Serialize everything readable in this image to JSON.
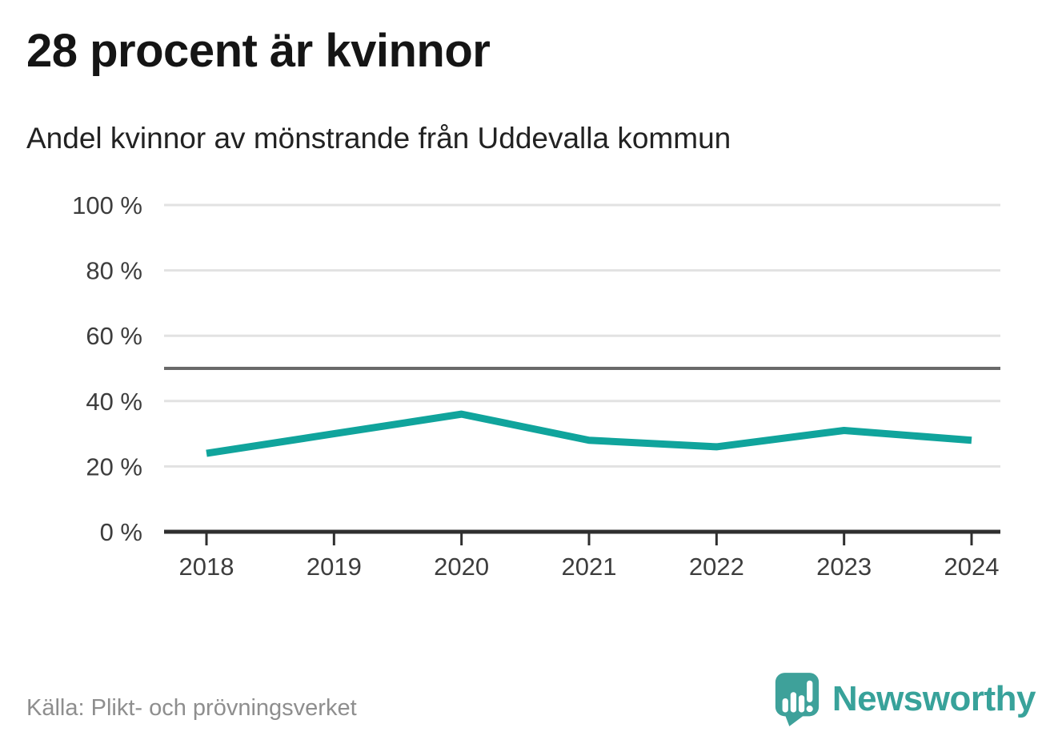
{
  "header": {
    "title": "28 procent är kvinnor",
    "subtitle": "Andel kvinnor av mönstrande från Uddevalla kommun"
  },
  "chart_data": {
    "type": "line",
    "title": "Andel kvinnor av mönstrande från Uddevalla kommun",
    "categories": [
      "2018",
      "2019",
      "2020",
      "2021",
      "2022",
      "2023",
      "2024"
    ],
    "series": [
      {
        "name": "Andel kvinnor",
        "values": [
          24,
          30,
          36,
          28,
          26,
          31,
          28
        ]
      }
    ],
    "xlabel": "",
    "ylabel": "",
    "ylim": [
      0,
      100
    ],
    "y_ticks": [
      0,
      20,
      40,
      60,
      80,
      100
    ],
    "y_tick_suffix": " %",
    "reference_line": 50,
    "grid": true,
    "legend": "none",
    "line_color": "#10a49c",
    "gridline_color": "#e2e2e2",
    "reference_line_color": "#6a6a6a",
    "axis_color": "#2f2f2f",
    "tick_label_color": "#3d3d3d"
  },
  "footer": {
    "source": "Källa: Plikt- och prövningsverket",
    "brand": "Newsworthy"
  },
  "icons": {
    "logo": "newsworthy-speech-bubble-bar-chart-icon"
  },
  "colors": {
    "brand_teal": "#38a29a",
    "title_text": "#151515",
    "source_text": "#8e8e8e",
    "background": "#ffffff"
  }
}
